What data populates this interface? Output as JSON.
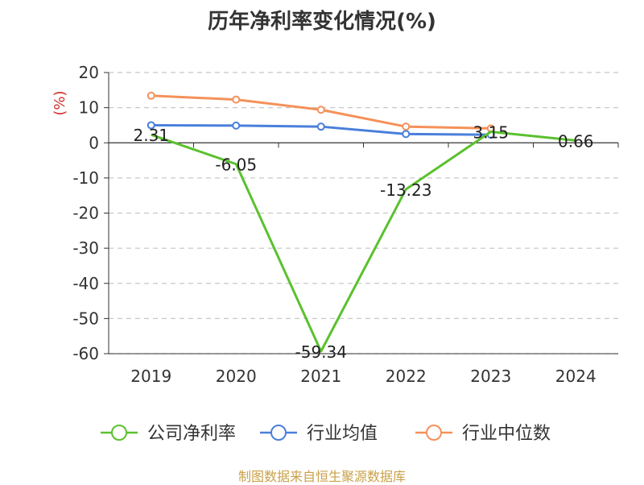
{
  "title": "历年净利率变化情况(%)",
  "source": "制图数据来自恒生聚源数据库",
  "chart_data": {
    "type": "line",
    "title": "历年净利率变化情况(%)",
    "ylabel": "(%)",
    "xlabel": "",
    "categories": [
      "2019",
      "2020",
      "2021",
      "2022",
      "2023",
      "2024"
    ],
    "ylim": [
      -60,
      20
    ],
    "yticks": [
      20,
      10,
      0,
      -10,
      -20,
      -30,
      -40,
      -50,
      -60
    ],
    "grid": true,
    "legend": "bottom",
    "series": [
      {
        "name": "公司净利率",
        "color": "#5ac12e",
        "values": [
          2.31,
          -6.05,
          -59.34,
          -13.23,
          3.15,
          0.66
        ],
        "labels": [
          "2.31",
          "-6.05",
          "-59.34",
          "-13.23",
          "3.15",
          "0.66"
        ],
        "markers": false
      },
      {
        "name": "行业均值",
        "color": "#4a7fdb",
        "values": [
          5.0,
          4.9,
          4.6,
          2.5,
          2.3,
          null
        ],
        "markers": true
      },
      {
        "name": "行业中位数",
        "color": "#f5915a",
        "values": [
          13.4,
          12.3,
          9.4,
          4.6,
          4.1,
          null
        ],
        "markers": true
      }
    ]
  }
}
